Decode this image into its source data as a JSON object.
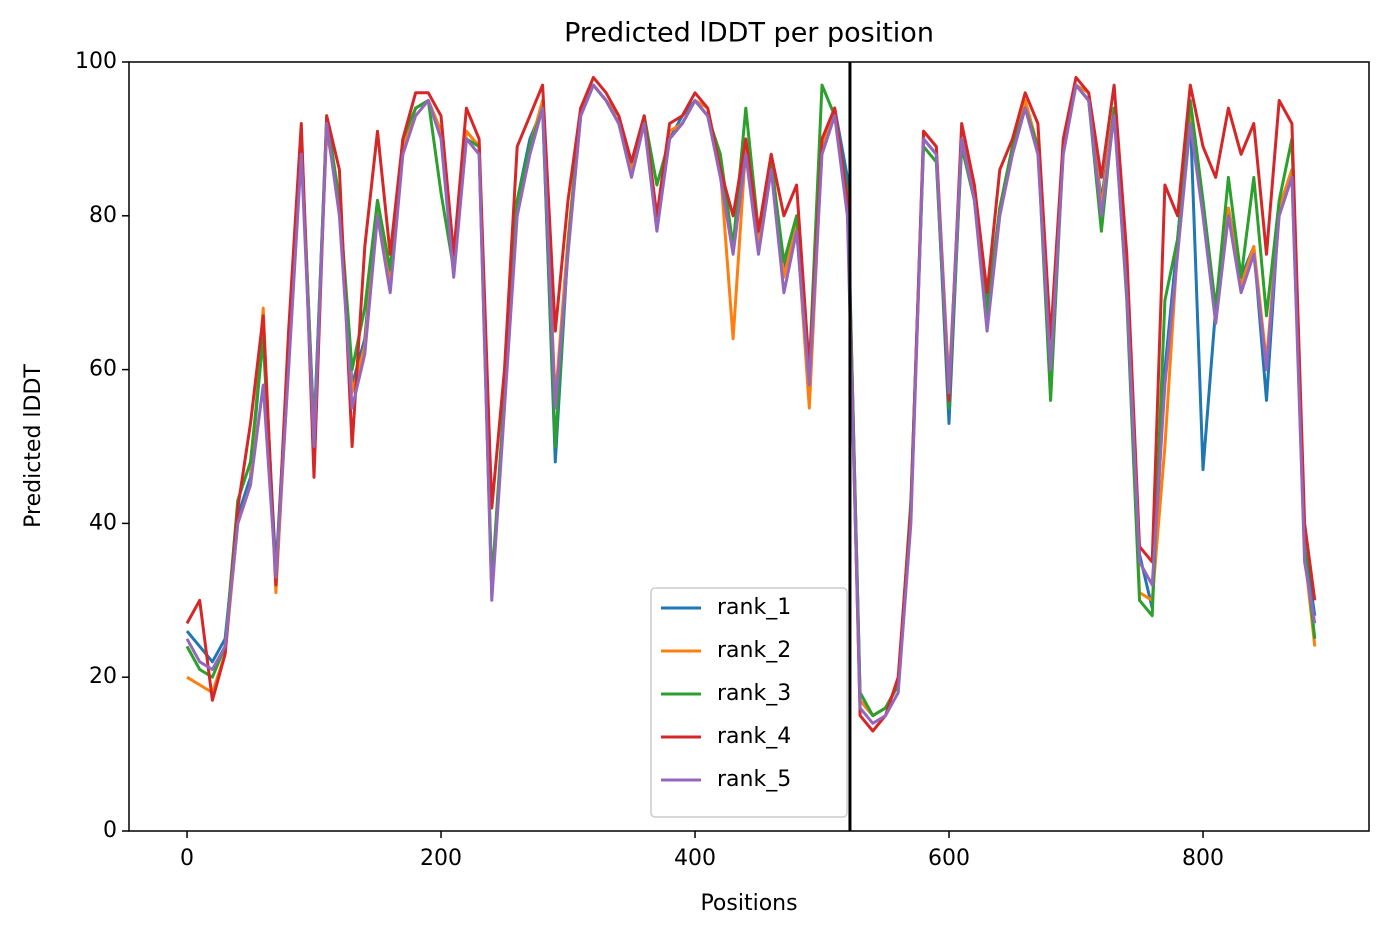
{
  "chart_data": {
    "type": "line",
    "title": "Predicted lDDT per position",
    "xlabel": "Positions",
    "ylabel": "Predicted lDDT",
    "x": [
      0,
      10,
      20,
      30,
      40,
      50,
      60,
      70,
      80,
      90,
      100,
      110,
      120,
      130,
      140,
      150,
      160,
      170,
      180,
      190,
      200,
      210,
      220,
      230,
      240,
      250,
      260,
      270,
      280,
      290,
      300,
      310,
      320,
      330,
      340,
      350,
      360,
      370,
      380,
      390,
      400,
      410,
      420,
      430,
      440,
      450,
      460,
      470,
      480,
      490,
      500,
      510,
      520,
      530,
      540,
      550,
      560,
      570,
      580,
      590,
      600,
      610,
      620,
      630,
      640,
      650,
      660,
      670,
      680,
      690,
      700,
      710,
      720,
      730,
      740,
      750,
      760,
      770,
      780,
      790,
      800,
      810,
      820,
      830,
      840,
      850,
      860,
      870,
      880,
      888
    ],
    "series": [
      {
        "name": "rank_1",
        "color": "#1f77b4",
        "values": [
          26,
          24,
          22,
          25,
          41,
          46,
          65,
          34,
          62,
          90,
          52,
          92,
          82,
          58,
          64,
          82,
          72,
          89,
          94,
          95,
          91,
          74,
          91,
          89,
          31,
          56,
          82,
          90,
          94,
          48,
          76,
          93,
          97,
          95,
          92,
          86,
          92,
          79,
          90,
          93,
          95,
          93,
          86,
          76,
          89,
          77,
          87,
          73,
          79,
          59,
          89,
          94,
          85,
          17,
          15,
          16,
          19,
          42,
          90,
          88,
          53,
          90,
          83,
          68,
          81,
          89,
          94,
          89,
          62,
          89,
          97,
          95,
          82,
          94,
          72,
          36,
          29,
          60,
          77,
          93,
          47,
          68,
          81,
          72,
          76,
          56,
          81,
          86,
          37,
          28
        ]
      },
      {
        "name": "rank_2",
        "color": "#ff7f0e",
        "values": [
          20,
          19,
          18,
          23,
          40,
          45,
          68,
          31,
          61,
          91,
          51,
          91,
          82,
          57,
          63,
          81,
          71,
          89,
          94,
          95,
          91,
          73,
          91,
          89,
          31,
          56,
          81,
          89,
          95,
          56,
          77,
          94,
          97,
          95,
          93,
          86,
          92,
          79,
          91,
          92,
          95,
          94,
          86,
          64,
          89,
          76,
          88,
          72,
          79,
          55,
          89,
          94,
          82,
          17,
          15,
          16,
          19,
          41,
          91,
          89,
          58,
          90,
          83,
          67,
          81,
          89,
          95,
          89,
          61,
          89,
          97,
          96,
          81,
          94,
          71,
          31,
          30,
          50,
          76,
          93,
          81,
          67,
          81,
          71,
          76,
          61,
          81,
          86,
          36,
          24
        ]
      },
      {
        "name": "rank_3",
        "color": "#2ca02c",
        "values": [
          24,
          21,
          20,
          24,
          43,
          48,
          64,
          33,
          62,
          90,
          51,
          93,
          82,
          60,
          68,
          82,
          73,
          90,
          94,
          95,
          83,
          73,
          90,
          89,
          32,
          57,
          82,
          89,
          94,
          50,
          76,
          94,
          97,
          95,
          92,
          87,
          93,
          84,
          90,
          92,
          95,
          93,
          88,
          76,
          94,
          78,
          87,
          74,
          80,
          60,
          97,
          93,
          83,
          18,
          15,
          16,
          19,
          43,
          89,
          87,
          55,
          89,
          82,
          67,
          81,
          89,
          94,
          89,
          56,
          89,
          97,
          95,
          78,
          94,
          69,
          30,
          28,
          69,
          77,
          95,
          82,
          68,
          85,
          72,
          85,
          67,
          82,
          90,
          37,
          25
        ]
      },
      {
        "name": "rank_4",
        "color": "#d62728",
        "values": [
          27,
          30,
          17,
          23,
          42,
          53,
          67,
          32,
          65,
          92,
          46,
          93,
          86,
          50,
          76,
          91,
          75,
          90,
          96,
          96,
          93,
          75,
          94,
          90,
          42,
          60,
          89,
          93,
          97,
          65,
          82,
          94,
          98,
          96,
          93,
          87,
          93,
          80,
          92,
          93,
          96,
          94,
          86,
          80,
          90,
          78,
          88,
          80,
          84,
          60,
          90,
          94,
          82,
          15,
          13,
          15,
          20,
          42,
          91,
          89,
          56,
          92,
          84,
          70,
          86,
          90,
          96,
          92,
          64,
          90,
          98,
          96,
          85,
          97,
          75,
          37,
          35,
          84,
          80,
          97,
          89,
          85,
          94,
          88,
          92,
          75,
          95,
          92,
          40,
          30
        ]
      },
      {
        "name": "rank_5",
        "color": "#9467bd",
        "values": [
          25,
          22,
          21,
          24,
          40,
          45,
          58,
          33,
          60,
          88,
          50,
          92,
          80,
          55,
          62,
          80,
          70,
          88,
          93,
          95,
          90,
          72,
          90,
          88,
          30,
          55,
          80,
          88,
          94,
          55,
          75,
          93,
          97,
          95,
          92,
          85,
          92,
          78,
          90,
          92,
          95,
          93,
          85,
          75,
          88,
          75,
          86,
          70,
          78,
          58,
          88,
          93,
          80,
          16,
          14,
          15,
          18,
          40,
          90,
          88,
          57,
          90,
          82,
          65,
          80,
          88,
          94,
          88,
          60,
          88,
          97,
          95,
          80,
          93,
          70,
          35,
          32,
          58,
          75,
          92,
          80,
          66,
          80,
          70,
          75,
          60,
          80,
          85,
          35,
          27
        ]
      }
    ],
    "vlines": [
      522
    ],
    "xlim": [
      -45.7,
      930.7
    ],
    "ylim": [
      0,
      100
    ],
    "xticks": [
      0,
      200,
      400,
      600,
      800
    ],
    "yticks": [
      0,
      20,
      40,
      60,
      80,
      100
    ],
    "legend": "lower center",
    "grid": false
  }
}
